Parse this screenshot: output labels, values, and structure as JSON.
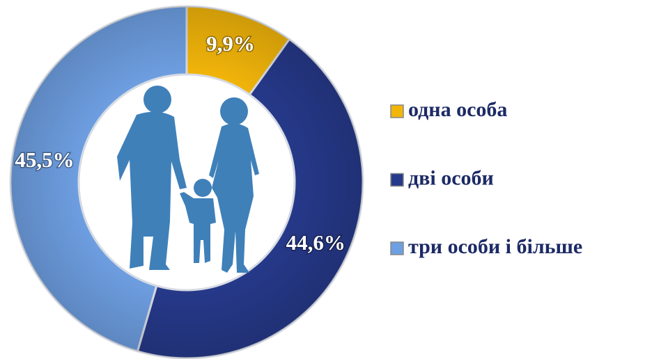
{
  "chart_data": {
    "type": "pie",
    "categories": [
      "одна особа",
      "дві особи",
      "три особи і більше"
    ],
    "values": [
      9.9,
      44.6,
      45.5
    ],
    "value_labels": [
      "9,9%",
      "44,6%",
      "45,5%"
    ],
    "colors": [
      "#f2b50a",
      "#26398a",
      "#6e9fe2"
    ]
  }
}
